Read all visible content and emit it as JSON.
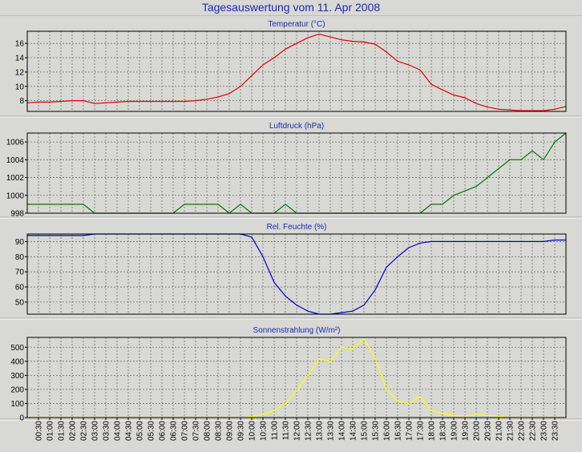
{
  "page_title": "Tagesauswertung vom 11. Apr 2008",
  "chart_data": [
    {
      "type": "line",
      "title": "Temperatur (°C)",
      "ylim": [
        6.5,
        17.7
      ],
      "yticks": [
        8,
        10,
        12,
        14,
        16
      ],
      "grid": true,
      "series": [
        {
          "color": "#e00000",
          "x": [
            0,
            0.5,
            1,
            1.5,
            2,
            2.5,
            3,
            3.5,
            4,
            4.5,
            5,
            5.5,
            6,
            6.5,
            7,
            7.5,
            8,
            8.5,
            9,
            9.5,
            10,
            10.5,
            11,
            11.5,
            12,
            12.5,
            13,
            13.5,
            14,
            14.5,
            15,
            15.5,
            16,
            16.5,
            17,
            17.5,
            18,
            18.5,
            19,
            19.5,
            20,
            20.5,
            21,
            21.5,
            22,
            22.5,
            23,
            23.5,
            24
          ],
          "values": [
            7.7,
            7.8,
            7.8,
            7.9,
            8.0,
            8.0,
            7.6,
            7.7,
            7.8,
            7.9,
            7.9,
            7.9,
            7.9,
            7.9,
            7.9,
            8.0,
            8.2,
            8.5,
            9.0,
            10.0,
            11.5,
            13.0,
            14.0,
            15.2,
            16.0,
            16.8,
            17.3,
            16.9,
            16.5,
            16.3,
            16.2,
            15.9,
            14.8,
            13.5,
            13.0,
            12.3,
            10.3,
            9.5,
            8.8,
            8.4,
            7.6,
            7.1,
            6.8,
            6.7,
            6.6,
            6.6,
            6.6,
            6.8,
            7.2
          ]
        }
      ]
    },
    {
      "type": "line",
      "title": "Luftdruck (hPa)",
      "ylim": [
        998,
        1007
      ],
      "yticks": [
        998,
        1000,
        1002,
        1004,
        1006
      ],
      "grid": true,
      "series": [
        {
          "color": "#007800",
          "x": [
            0,
            0.5,
            1,
            1.5,
            2,
            2.5,
            3,
            3.5,
            4,
            4.5,
            5,
            5.5,
            6,
            6.5,
            7,
            7.5,
            8,
            8.5,
            9,
            9.5,
            10,
            10.5,
            11,
            11.5,
            12,
            12.5,
            13,
            13.5,
            14,
            14.5,
            15,
            15.5,
            16,
            16.5,
            17,
            17.5,
            18,
            18.5,
            19,
            19.5,
            20,
            20.5,
            21,
            21.5,
            22,
            22.5,
            23,
            23.5,
            24
          ],
          "values": [
            999,
            999,
            999,
            999,
            999,
            999,
            998,
            998,
            998,
            998,
            998,
            998,
            998,
            998,
            999,
            999,
            999,
            999,
            998,
            999,
            998,
            998,
            998,
            999,
            998,
            998,
            998,
            998,
            998,
            998,
            998,
            998,
            998,
            998,
            998,
            998,
            999,
            999,
            1000,
            1000.5,
            1001,
            1002,
            1003,
            1004,
            1004,
            1005,
            1004,
            1006,
            1007
          ]
        }
      ]
    },
    {
      "type": "line",
      "title": "Rel. Feuchte (%)",
      "ylim": [
        42,
        95
      ],
      "yticks": [
        50,
        60,
        70,
        80,
        90
      ],
      "grid": true,
      "series": [
        {
          "color": "#0000c8",
          "x": [
            0,
            0.5,
            1,
            1.5,
            2,
            2.5,
            3,
            3.5,
            4,
            4.5,
            5,
            5.5,
            6,
            6.5,
            7,
            7.5,
            8,
            8.5,
            9,
            9.5,
            10,
            10.5,
            11,
            11.5,
            12,
            12.5,
            13,
            13.5,
            14,
            14.5,
            15,
            15.5,
            16,
            16.5,
            17,
            17.5,
            18,
            18.5,
            19,
            19.5,
            20,
            20.5,
            21,
            21.5,
            22,
            22.5,
            23,
            23.5,
            24
          ],
          "values": [
            94,
            94,
            94,
            94,
            94,
            94,
            95,
            95,
            95,
            95,
            95,
            95,
            95,
            95,
            95,
            95,
            95,
            95,
            95,
            95,
            93,
            80,
            63,
            54,
            48,
            44,
            42,
            42,
            43,
            44,
            48,
            58,
            73,
            80,
            86,
            89,
            90,
            90,
            90,
            90,
            90,
            90,
            90,
            90,
            90,
            90,
            90,
            91,
            91
          ]
        }
      ]
    },
    {
      "type": "line",
      "title": "Sonnenstrahlung (W/m²)",
      "ylim": [
        0,
        570
      ],
      "yticks": [
        0,
        100,
        200,
        300,
        400,
        500
      ],
      "grid": true,
      "series": [
        {
          "color": "#ffff00",
          "x": [
            0,
            0.5,
            1,
            1.5,
            2,
            2.5,
            3,
            3.5,
            4,
            4.5,
            5,
            5.5,
            6,
            6.5,
            7,
            7.5,
            8,
            8.5,
            9,
            9.5,
            10,
            10.5,
            11,
            11.5,
            12,
            12.5,
            13,
            13.5,
            14,
            14.5,
            15,
            15.5,
            16,
            16.5,
            17,
            17.5,
            18,
            18.5,
            19,
            19.5,
            20,
            20.5,
            21,
            21.5,
            22,
            22.5,
            23,
            23.5,
            24
          ],
          "values": [
            0,
            0,
            0,
            0,
            0,
            0,
            0,
            0,
            0,
            0,
            0,
            0,
            0,
            0,
            0,
            0,
            0,
            0,
            0,
            0,
            5,
            20,
            50,
            100,
            190,
            300,
            420,
            395,
            500,
            490,
            560,
            420,
            200,
            120,
            100,
            150,
            50,
            30,
            15,
            10,
            20,
            15,
            10,
            0,
            0,
            0,
            0,
            0,
            0
          ]
        }
      ]
    }
  ],
  "x_axis": {
    "labels": [
      "00:30",
      "01:00",
      "01:30",
      "02:00",
      "02:30",
      "03:00",
      "03:30",
      "04:00",
      "04:30",
      "05:00",
      "05:30",
      "06:00",
      "06:30",
      "07:00",
      "07:30",
      "08:00",
      "08:30",
      "09:00",
      "09:30",
      "10:00",
      "10:30",
      "11:00",
      "11:30",
      "12:00",
      "12:30",
      "13:00",
      "13:30",
      "14:00",
      "14:30",
      "15:00",
      "15:30",
      "16:00",
      "16:30",
      "17:00",
      "17:30",
      "18:00",
      "18:30",
      "19:00",
      "19:30",
      "20:00",
      "20:30",
      "21:00",
      "21:30",
      "22:00",
      "22:30",
      "23:00",
      "23:30"
    ]
  }
}
